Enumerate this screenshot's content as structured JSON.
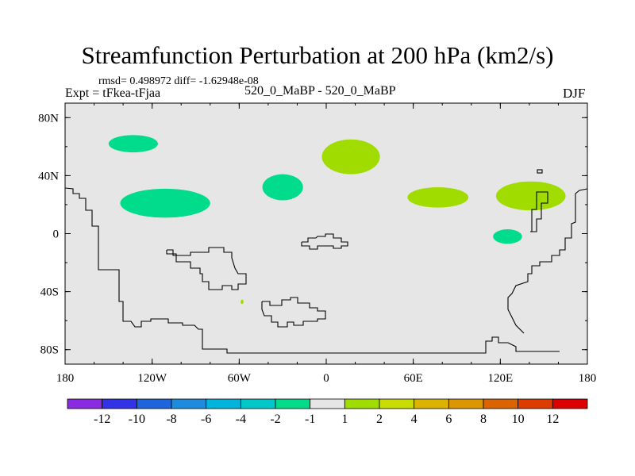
{
  "chart_data": {
    "type": "contour-map",
    "title": "Streamfunction Perturbation at 200 hPa (km2/s)",
    "stats_line": "rmsd= 0.498972 diff= -1.62948e-08",
    "left_label": "Expt = tFkea-tFjaa",
    "center_label": "520_0_MaBP - 520_0_MaBP",
    "right_label": "DJF",
    "x_axis": {
      "range": [
        -180,
        180
      ],
      "ticks": [
        -180,
        -120,
        -60,
        0,
        60,
        120,
        180
      ],
      "tick_labels": [
        "180",
        "120W",
        "60W",
        "0",
        "60E",
        "120E",
        "180"
      ]
    },
    "y_axis": {
      "range": [
        -90,
        90
      ],
      "ticks": [
        80,
        40,
        0,
        -40,
        -80
      ],
      "tick_labels": [
        "80N",
        "40N",
        "0",
        "40S",
        "80S"
      ]
    },
    "background_color": "#e6e6e6",
    "regions": [
      {
        "value_range": "-2 to -1",
        "color": "#00dc8c",
        "center": [
          -133,
          62
        ],
        "half_widths": [
          17,
          6
        ]
      },
      {
        "value_range": "-2 to -1",
        "color": "#00dc8c",
        "center": [
          -111,
          21
        ],
        "half_widths": [
          31,
          10
        ]
      },
      {
        "value_range": "-2 to -1",
        "color": "#00dc8c",
        "center": [
          -30,
          32
        ],
        "half_widths": [
          14,
          9
        ]
      },
      {
        "value_range": "-2 to -1",
        "color": "#00dc8c",
        "center": [
          125,
          -2
        ],
        "half_widths": [
          10,
          5
        ]
      },
      {
        "value_range": "1 to 2",
        "color": "#a0dc00",
        "center": [
          17,
          53
        ],
        "half_widths": [
          20,
          12
        ]
      },
      {
        "value_range": "1 to 2",
        "color": "#a0dc00",
        "center": [
          77,
          25
        ],
        "half_widths": [
          21,
          7
        ]
      },
      {
        "value_range": "1 to 2",
        "color": "#a0dc00",
        "center": [
          141,
          26
        ],
        "half_widths": [
          24,
          10
        ]
      },
      {
        "value_range": "1 to 2",
        "color": "#a0dc00",
        "center": [
          -58,
          -47
        ],
        "half_widths": [
          1,
          1.5
        ]
      }
    ],
    "colorbar": {
      "colors": [
        "#8a2be2",
        "#3232e6",
        "#1e64dc",
        "#1e8cdc",
        "#00b4dc",
        "#00c8c8",
        "#00dc8c",
        "#e6e6e6",
        "#a0dc00",
        "#c8dc00",
        "#dcb400",
        "#dc9600",
        "#dc6400",
        "#dc3c00",
        "#dc0000"
      ],
      "labels": [
        "-12",
        "-10",
        "-8",
        "-6",
        "-4",
        "-2",
        "-1",
        "1",
        "2",
        "4",
        "6",
        "8",
        "10",
        "12"
      ]
    }
  }
}
